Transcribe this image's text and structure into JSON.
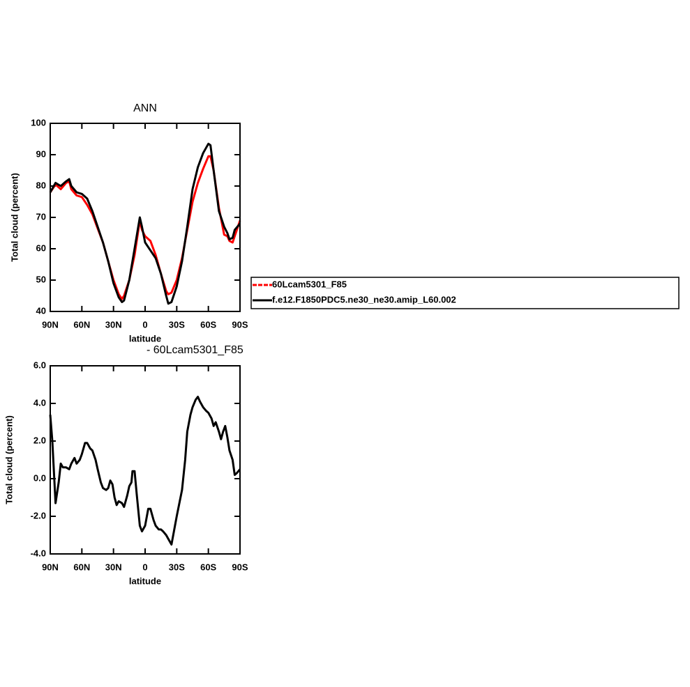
{
  "chart_data": [
    {
      "type": "line",
      "title": "ANN",
      "xlabel": "latitude",
      "ylabel": "Total cloud (percent)",
      "x": [
        90,
        85,
        80,
        75,
        72,
        70,
        65,
        60,
        55,
        50,
        45,
        40,
        35,
        30,
        25,
        22,
        20,
        15,
        10,
        5,
        3,
        0,
        -5,
        -10,
        -15,
        -20,
        -22,
        -25,
        -30,
        -35,
        -40,
        -45,
        -50,
        -55,
        -60,
        -62,
        -65,
        -70,
        -75,
        -78,
        -80,
        -83,
        -85,
        -90
      ],
      "series": [
        {
          "name": "60Lcam5301_F85",
          "color": "#ff0000",
          "values": [
            78,
            80.5,
            79,
            81,
            81.5,
            79,
            77,
            76.5,
            74,
            71,
            66.5,
            62,
            56,
            50,
            45.5,
            44,
            45,
            50,
            58,
            69,
            66,
            64,
            62.5,
            58,
            52,
            46.5,
            45.5,
            46,
            50,
            57,
            66,
            75,
            81,
            85.5,
            89.5,
            89.5,
            85,
            73,
            64.5,
            64,
            62.5,
            62,
            64,
            69
          ]
        },
        {
          "name": "f.e12.F1850PDC5.ne30_ne30.amip_L60.002",
          "color": "#000000",
          "values": [
            78,
            81,
            80,
            81.5,
            82.2,
            80,
            78,
            77.5,
            76,
            72,
            67,
            62,
            56,
            49,
            44.5,
            43,
            43.5,
            50,
            60,
            70,
            67,
            62,
            59.5,
            57,
            52,
            45,
            42.5,
            43,
            48,
            56,
            67,
            79,
            86,
            90.5,
            93.5,
            93,
            85,
            72,
            67,
            65,
            63,
            63.5,
            66,
            68
          ]
        }
      ],
      "xlim": [
        90,
        -90
      ],
      "xticks": [
        {
          "value": 90,
          "label": "90N"
        },
        {
          "value": 60,
          "label": "60N"
        },
        {
          "value": 30,
          "label": "30N"
        },
        0,
        {
          "value": -30,
          "label": "30S"
        },
        {
          "value": -60,
          "label": "60S"
        },
        {
          "value": -90,
          "label": "90S"
        }
      ],
      "ylim": [
        40,
        100
      ],
      "yticks": [
        40,
        50,
        60,
        70,
        80,
        90,
        100
      ],
      "legend": "right"
    },
    {
      "type": "line",
      "title": "- 60Lcam5301_F85",
      "xlabel": "latitude",
      "ylabel": "Total cloud (percent)",
      "x": [
        90,
        88,
        85,
        82,
        80,
        78,
        75,
        72,
        70,
        67,
        65,
        62,
        60,
        57,
        55,
        52,
        50,
        47,
        45,
        42,
        40,
        37,
        35,
        33,
        31,
        29,
        27,
        25,
        22,
        20,
        17,
        15,
        13,
        12,
        10,
        8,
        5,
        3,
        0,
        -3,
        -5,
        -8,
        -10,
        -13,
        -15,
        -17,
        -20,
        -22,
        -25,
        -28,
        -30,
        -35,
        -38,
        -40,
        -43,
        -45,
        -48,
        -50,
        -52,
        -55,
        -58,
        -60,
        -63,
        -65,
        -67,
        -70,
        -72,
        -74,
        -76,
        -78,
        -80,
        -83,
        -85,
        -87,
        -90
      ],
      "series": [
        {
          "name": null,
          "color": "#000000",
          "values": [
            3.4,
            2.0,
            -1.3,
            -0.2,
            0.8,
            0.6,
            0.6,
            0.5,
            0.8,
            1.1,
            0.8,
            1.0,
            1.3,
            1.9,
            1.9,
            1.6,
            1.5,
            1.0,
            0.5,
            -0.2,
            -0.5,
            -0.6,
            -0.5,
            -0.1,
            -0.3,
            -1.0,
            -1.4,
            -1.2,
            -1.3,
            -1.5,
            -0.9,
            -0.4,
            -0.2,
            0.4,
            0.4,
            -0.8,
            -2.5,
            -2.8,
            -2.5,
            -1.6,
            -1.6,
            -2.2,
            -2.5,
            -2.7,
            -2.7,
            -2.8,
            -3.0,
            -3.2,
            -3.5,
            -2.6,
            -2.0,
            -0.6,
            1.0,
            2.5,
            3.4,
            3.8,
            4.2,
            4.35,
            4.1,
            3.8,
            3.6,
            3.5,
            3.2,
            2.8,
            3.0,
            2.5,
            2.1,
            2.5,
            2.8,
            2.2,
            1.5,
            1.0,
            0.2,
            0.3,
            0.5
          ]
        }
      ],
      "xlim": [
        90,
        -90
      ],
      "xticks": [
        {
          "value": 90,
          "label": "90N"
        },
        {
          "value": 60,
          "label": "60N"
        },
        {
          "value": 30,
          "label": "30N"
        },
        0,
        {
          "value": -30,
          "label": "30S"
        },
        {
          "value": -60,
          "label": "60S"
        },
        {
          "value": -90,
          "label": "90S"
        }
      ],
      "ylim": [
        -4,
        6
      ],
      "yticks": [
        {
          "value": -4,
          "label": "-4.0"
        },
        {
          "value": -2,
          "label": "-2.0"
        },
        {
          "value": 0,
          "label": "0.0"
        },
        {
          "value": 2,
          "label": "2.0"
        },
        {
          "value": 4,
          "label": "4.0"
        },
        {
          "value": 6,
          "label": "6.0"
        }
      ]
    }
  ]
}
